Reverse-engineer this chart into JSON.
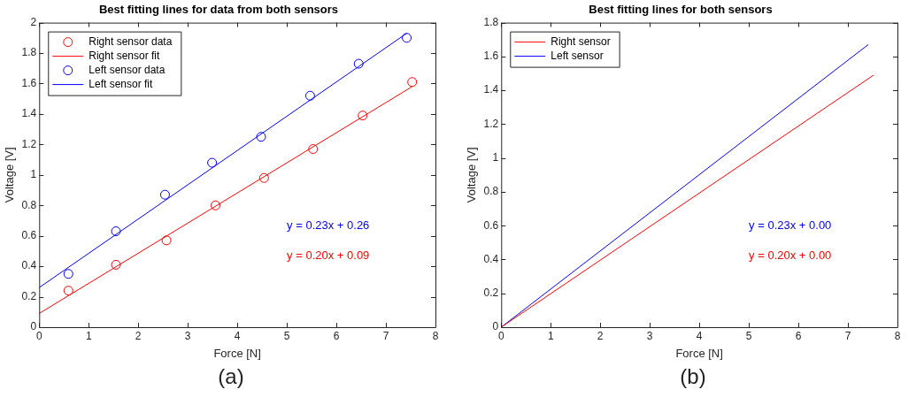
{
  "chart_data": [
    {
      "type": "scatter",
      "title": "Best fitting lines for data from both sensors",
      "xlabel": "Force [N]",
      "ylabel": "Voltage [V]",
      "xlim": [
        0,
        8
      ],
      "xticks": [
        0,
        1,
        2,
        3,
        4,
        5,
        6,
        7,
        8
      ],
      "ylim": [
        0,
        2
      ],
      "yticks": [
        0,
        0.2,
        0.4,
        0.6,
        0.8,
        1,
        1.2,
        1.4,
        1.6,
        1.8,
        2
      ],
      "grid": false,
      "legend": "top left",
      "series": [
        {
          "name": "Right sensor data",
          "marker": "circle",
          "color": "#ff0000",
          "x": [
            0.59,
            1.55,
            2.57,
            3.56,
            4.54,
            5.53,
            6.53,
            7.53
          ],
          "values": [
            0.24,
            0.41,
            0.57,
            0.8,
            0.98,
            1.17,
            1.39,
            1.61
          ]
        },
        {
          "name": "Right sensor fit",
          "type": "line",
          "marker": "none",
          "color": "#ff0000",
          "x": [
            0,
            7.53
          ],
          "values": [
            0.09,
            1.58
          ]
        },
        {
          "name": "Left sensor data",
          "marker": "circle",
          "color": "#0000ff",
          "x": [
            0.59,
            1.55,
            2.54,
            3.49,
            4.48,
            5.47,
            6.45,
            7.42
          ],
          "values": [
            0.35,
            0.63,
            0.87,
            1.08,
            1.25,
            1.52,
            1.73,
            1.9
          ]
        },
        {
          "name": "Left sensor fit",
          "type": "line",
          "marker": "none",
          "color": "#0000ff",
          "x": [
            0,
            7.42
          ],
          "values": [
            0.26,
            1.93
          ]
        }
      ],
      "annotations": [
        "y = 0.23x + 0.26",
        "y = 0.20x + 0.09",
        "(a)"
      ]
    },
    {
      "type": "line",
      "title": "Best fitting lines for both sensors",
      "xlabel": "Force [N]",
      "ylabel": "Voltage [V]",
      "xlim": [
        0,
        8
      ],
      "xticks": [
        0,
        1,
        2,
        3,
        4,
        5,
        6,
        7,
        8
      ],
      "ylim": [
        0,
        1.8
      ],
      "yticks": [
        0,
        0.2,
        0.4,
        0.6,
        0.8,
        1,
        1.2,
        1.4,
        1.6,
        1.8
      ],
      "grid": false,
      "legend": "top left",
      "series": [
        {
          "name": "Right sensor",
          "marker": "none",
          "color": "#ff0000",
          "x": [
            0,
            7.52
          ],
          "values": [
            0,
            1.49
          ]
        },
        {
          "name": "Left sensor",
          "marker": "none",
          "color": "#0000ff",
          "x": [
            0,
            7.41
          ],
          "values": [
            0,
            1.67
          ]
        }
      ],
      "annotations": [
        "y = 0.23x + 0.00",
        "y = 0.20x + 0.00",
        "(b)"
      ]
    }
  ]
}
